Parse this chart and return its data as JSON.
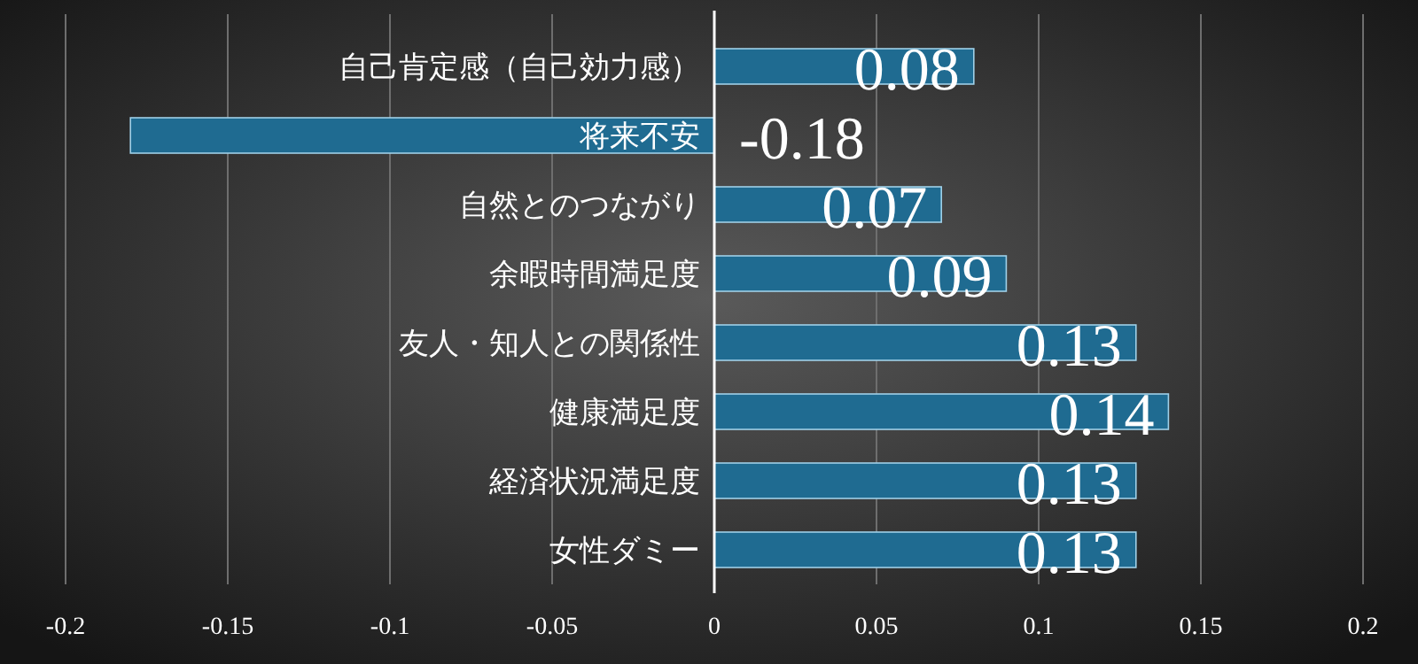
{
  "chart_data": {
    "type": "bar",
    "orientation": "horizontal",
    "categories": [
      "自己肯定感（自己効力感）",
      "将来不安",
      "自然とのつながり",
      "余暇時間満足度",
      "友人・知人との関係性",
      "健康満足度",
      "経済状況満足度",
      "女性ダミー"
    ],
    "values": [
      0.08,
      -0.18,
      0.07,
      0.09,
      0.13,
      0.14,
      0.13,
      0.13
    ],
    "color": "#1f6b91",
    "xlim": [
      -0.2,
      0.2
    ],
    "xticks": [
      -0.2,
      -0.15,
      -0.1,
      -0.05,
      0,
      0.05,
      0.1,
      0.15,
      0.2
    ],
    "grid": "x",
    "data_labels": true
  }
}
